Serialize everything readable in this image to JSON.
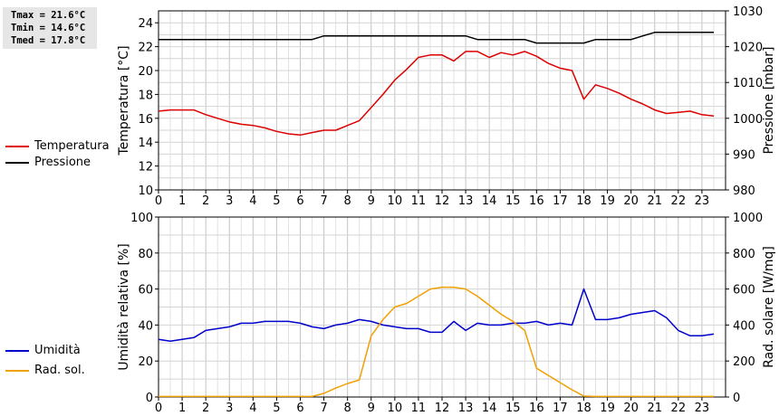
{
  "summary": {
    "tmax": "Tmax = 21.6°C",
    "tmin": "Tmin = 14.6°C",
    "tmed": "Tmed = 17.8°C"
  },
  "legend_top": [
    {
      "label": "Temperatura",
      "color": "#dd0000"
    },
    {
      "label": "Pressione",
      "color": "#000000"
    }
  ],
  "legend_bottom": [
    {
      "label": "Umidità",
      "color": "#0000cc"
    },
    {
      "label": "Rad. sol.",
      "color": "#f0a000"
    }
  ],
  "chart_data": [
    {
      "type": "line",
      "xlim": [
        0,
        24
      ],
      "xticks": [
        0,
        1,
        2,
        3,
        4,
        5,
        6,
        7,
        8,
        9,
        10,
        11,
        12,
        13,
        14,
        15,
        16,
        17,
        18,
        19,
        20,
        21,
        22,
        23
      ],
      "ylabel": "Temperatura [°C]",
      "ylim": [
        10,
        25
      ],
      "yticks": [
        10,
        12,
        14,
        16,
        18,
        20,
        22,
        24
      ],
      "y2label": "Pressione [mbar]",
      "y2lim": [
        980,
        1030
      ],
      "y2ticks": [
        980,
        990,
        1000,
        1010,
        1020,
        1030
      ],
      "grid": true,
      "series": [
        {
          "name": "Temperatura",
          "axis": "left",
          "color": "#dd0000",
          "x": [
            0,
            0.5,
            1,
            1.5,
            2,
            2.5,
            3,
            3.5,
            4,
            4.5,
            5,
            5.5,
            6,
            6.5,
            7,
            7.5,
            8,
            8.5,
            9,
            9.5,
            10,
            10.5,
            11,
            11.5,
            12,
            12.5,
            13,
            13.5,
            14,
            14.5,
            15,
            15.5,
            16,
            16.5,
            17,
            17.5,
            18,
            18.5,
            19,
            19.5,
            20,
            20.5,
            21,
            21.5,
            22,
            22.5,
            23,
            23.5
          ],
          "values": [
            16.6,
            16.7,
            16.7,
            16.7,
            16.3,
            16.0,
            15.7,
            15.5,
            15.4,
            15.2,
            14.9,
            14.7,
            14.6,
            14.8,
            15.0,
            15.0,
            15.4,
            15.8,
            16.9,
            18.0,
            19.2,
            20.1,
            21.1,
            21.3,
            21.3,
            20.8,
            21.6,
            21.6,
            21.1,
            21.5,
            21.3,
            21.6,
            21.2,
            20.6,
            20.2,
            20.0,
            17.6,
            18.8,
            18.5,
            18.1,
            17.6,
            17.2,
            16.7,
            16.4,
            16.5,
            16.6,
            16.3,
            16.2
          ]
        },
        {
          "name": "Pressione",
          "axis": "right",
          "color": "#000000",
          "x": [
            0,
            6.5,
            7,
            12.5,
            13,
            13.5,
            15,
            15.5,
            16,
            18,
            18.5,
            20,
            20.5,
            21,
            22,
            23.5
          ],
          "values": [
            1022,
            1022,
            1023,
            1023,
            1023,
            1022,
            1022,
            1022,
            1021,
            1021,
            1022,
            1022,
            1023,
            1024,
            1024,
            1024
          ]
        }
      ]
    },
    {
      "type": "line",
      "xlim": [
        0,
        24
      ],
      "xticks": [
        0,
        1,
        2,
        3,
        4,
        5,
        6,
        7,
        8,
        9,
        10,
        11,
        12,
        13,
        14,
        15,
        16,
        17,
        18,
        19,
        20,
        21,
        22,
        23
      ],
      "ylabel": "Umidità relativa [%]",
      "ylim": [
        0,
        100
      ],
      "yticks": [
        0,
        20,
        40,
        60,
        80,
        100
      ],
      "y2label": "Rad. solare [W/mq]",
      "y2lim": [
        0,
        1000
      ],
      "y2ticks": [
        0,
        200,
        400,
        600,
        800,
        1000
      ],
      "grid": true,
      "series": [
        {
          "name": "Umidità",
          "axis": "left",
          "color": "#0000cc",
          "x": [
            0,
            0.5,
            1,
            1.5,
            2,
            2.5,
            3,
            3.5,
            4,
            4.5,
            5,
            5.5,
            6,
            6.5,
            7,
            7.5,
            8,
            8.5,
            9,
            9.5,
            10,
            10.5,
            11,
            11.5,
            12,
            12.5,
            13,
            13.5,
            14,
            14.5,
            15,
            15.5,
            16,
            16.5,
            17,
            17.5,
            18,
            18.5,
            19,
            19.5,
            20,
            20.5,
            21,
            21.5,
            22,
            22.5,
            23,
            23.5
          ],
          "values": [
            32,
            31,
            32,
            33,
            37,
            38,
            39,
            41,
            41,
            42,
            42,
            42,
            41,
            39,
            38,
            40,
            41,
            43,
            42,
            40,
            39,
            38,
            38,
            36,
            36,
            42,
            37,
            41,
            40,
            40,
            41,
            41,
            42,
            40,
            41,
            40,
            60,
            43,
            43,
            44,
            46,
            47,
            48,
            44,
            37,
            34,
            34,
            35
          ]
        },
        {
          "name": "Rad. sol.",
          "axis": "right",
          "color": "#f0a000",
          "x": [
            0,
            0.5,
            1,
            1.5,
            2,
            2.5,
            3,
            3.5,
            4,
            4.5,
            5,
            5.5,
            6,
            6.5,
            7,
            7.5,
            8,
            8.5,
            9,
            9.5,
            10,
            10.5,
            11,
            11.5,
            12,
            12.5,
            13,
            13.5,
            14,
            14.5,
            15,
            15.5,
            16,
            16.5,
            17,
            17.5,
            18,
            18.5,
            19,
            19.5,
            20,
            20.5,
            21,
            21.5,
            22,
            22.5,
            23,
            23.5
          ],
          "values": [
            3,
            3,
            3,
            3,
            3,
            3,
            3,
            3,
            3,
            3,
            3,
            3,
            3,
            3,
            20,
            50,
            75,
            95,
            340,
            430,
            500,
            520,
            560,
            600,
            610,
            610,
            600,
            560,
            510,
            460,
            420,
            370,
            160,
            120,
            80,
            40,
            5,
            3,
            3,
            3,
            3,
            3,
            3,
            3,
            3,
            3,
            3,
            3
          ]
        }
      ]
    }
  ]
}
